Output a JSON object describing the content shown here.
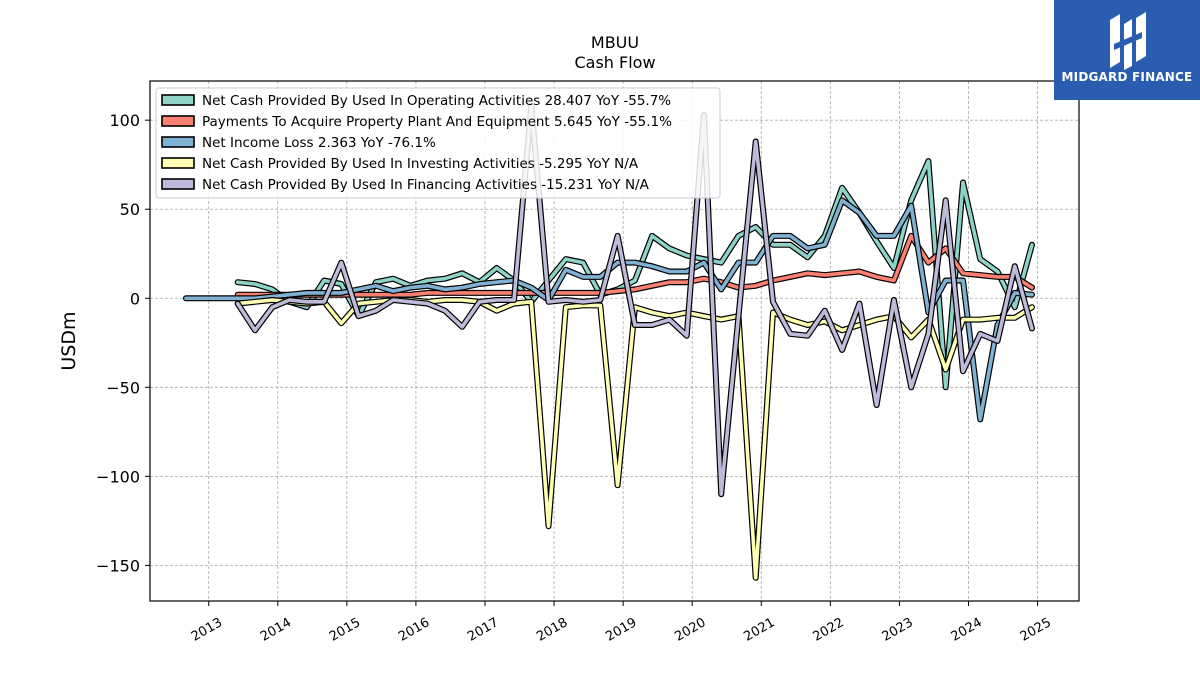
{
  "brand": {
    "name": "MIDGARD FINANCE",
    "logo_icon": "midgard-logo-icon",
    "color": "#2a5db0"
  },
  "chart_data": {
    "type": "line",
    "title": "MBUU",
    "subtitle": "Cash Flow",
    "ylabel": "USDm",
    "xlabel": "",
    "ylim": [
      -170,
      122
    ],
    "xlim": [
      2012.15,
      2025.6
    ],
    "yticks": [
      100,
      50,
      0,
      -50,
      -100,
      -150
    ],
    "xticks": [
      2013,
      2014,
      2015,
      2016,
      2017,
      2018,
      2019,
      2020,
      2021,
      2022,
      2023,
      2024,
      2025
    ],
    "grid": true,
    "legend_position": "top-left",
    "series": [
      {
        "name": "Net Cash Provided By Used In Operating Activities  28.407 YoY -55.7%",
        "color": "#8dd3c7",
        "x": [
          2013.42,
          2013.67,
          2013.92,
          2014.17,
          2014.42,
          2014.67,
          2014.92,
          2015.17,
          2015.42,
          2015.67,
          2015.92,
          2016.17,
          2016.42,
          2016.67,
          2016.92,
          2017.17,
          2017.42,
          2017.67,
          2017.92,
          2018.17,
          2018.42,
          2018.67,
          2018.92,
          2019.17,
          2019.42,
          2019.67,
          2019.92,
          2020.17,
          2020.42,
          2020.67,
          2020.92,
          2021.17,
          2021.42,
          2021.67,
          2021.92,
          2022.17,
          2022.42,
          2022.67,
          2022.92,
          2023.17,
          2023.42,
          2023.67,
          2023.92,
          2024.17,
          2024.42,
          2024.67,
          2024.92
        ],
        "values": [
          9,
          8,
          5,
          -2,
          -5,
          10,
          8,
          -10,
          9,
          11,
          7,
          10,
          11,
          14,
          9,
          17,
          10,
          -2,
          10,
          22,
          20,
          2,
          5,
          10,
          35,
          28,
          24,
          22,
          20,
          35,
          40,
          30,
          30,
          23,
          35,
          62,
          48,
          32,
          17,
          55,
          77,
          -50,
          65,
          22,
          15,
          -5,
          30
        ]
      },
      {
        "name": "Payments To Acquire Property Plant And Equipment  5.645 YoY -55.1%",
        "color": "#fb8072",
        "x": [
          2013.42,
          2013.67,
          2013.92,
          2014.17,
          2014.42,
          2014.67,
          2014.92,
          2015.17,
          2015.42,
          2015.67,
          2015.92,
          2016.17,
          2016.42,
          2016.67,
          2016.92,
          2017.17,
          2017.42,
          2017.67,
          2017.92,
          2018.17,
          2018.42,
          2018.67,
          2018.92,
          2019.17,
          2019.42,
          2019.67,
          2019.92,
          2020.17,
          2020.42,
          2020.67,
          2020.92,
          2021.17,
          2021.42,
          2021.67,
          2021.92,
          2022.17,
          2022.42,
          2022.67,
          2022.92,
          2023.17,
          2023.42,
          2023.67,
          2023.92,
          2024.17,
          2024.42,
          2024.67,
          2024.92
        ],
        "values": [
          2,
          2,
          2,
          2,
          2,
          2,
          2,
          2,
          2,
          2,
          2,
          3,
          3,
          3,
          3,
          3,
          3,
          3,
          3,
          3,
          3,
          3,
          4,
          5,
          7,
          9,
          9,
          11,
          9,
          6,
          7,
          10,
          12,
          14,
          13,
          14,
          15,
          12,
          10,
          35,
          20,
          28,
          14,
          13,
          12,
          12,
          6
        ]
      },
      {
        "name": "Net Income Loss  2.363 YoY -76.1%",
        "color": "#80b1d3",
        "x": [
          2012.67,
          2012.92,
          2013.17,
          2013.42,
          2013.67,
          2013.92,
          2014.17,
          2014.42,
          2014.67,
          2014.92,
          2015.17,
          2015.42,
          2015.67,
          2015.92,
          2016.17,
          2016.42,
          2016.67,
          2016.92,
          2017.17,
          2017.42,
          2017.67,
          2017.92,
          2018.17,
          2018.42,
          2018.67,
          2018.92,
          2019.17,
          2019.42,
          2019.67,
          2019.92,
          2020.17,
          2020.42,
          2020.67,
          2020.92,
          2021.17,
          2021.42,
          2021.67,
          2021.92,
          2022.17,
          2022.42,
          2022.67,
          2022.92,
          2023.17,
          2023.42,
          2023.67,
          2023.92,
          2024.17,
          2024.42,
          2024.67,
          2024.92
        ],
        "values": [
          0,
          0,
          0,
          0,
          0,
          1,
          2,
          3,
          3,
          3,
          5,
          7,
          4,
          6,
          7,
          5,
          6,
          8,
          9,
          10,
          6,
          -1,
          16,
          12,
          12,
          20,
          20,
          18,
          15,
          15,
          20,
          5,
          20,
          20,
          35,
          35,
          28,
          30,
          55,
          48,
          35,
          35,
          52,
          -8,
          10,
          10,
          -68,
          -15,
          3,
          2
        ]
      },
      {
        "name": "Net Cash Provided By Used In Investing Activities  -5.295 YoY N/A",
        "color": "#ffffb3",
        "x": [
          2013.42,
          2013.67,
          2013.92,
          2014.17,
          2014.42,
          2014.67,
          2014.92,
          2015.17,
          2015.42,
          2015.67,
          2015.92,
          2016.17,
          2016.42,
          2016.67,
          2016.92,
          2017.17,
          2017.42,
          2017.67,
          2017.92,
          2018.17,
          2018.42,
          2018.67,
          2018.92,
          2019.17,
          2019.42,
          2019.67,
          2019.92,
          2020.17,
          2020.42,
          2020.67,
          2020.92,
          2021.17,
          2021.42,
          2021.67,
          2021.92,
          2022.17,
          2022.42,
          2022.67,
          2022.92,
          2023.17,
          2023.42,
          2023.67,
          2023.92,
          2024.17,
          2024.42,
          2024.67,
          2024.92
        ],
        "values": [
          -3,
          -2,
          -1,
          -2,
          -3,
          -2,
          -14,
          -3,
          -2,
          -1,
          -1,
          -2,
          -1,
          -1,
          -2,
          -7,
          -3,
          -2,
          -128,
          -5,
          -4,
          -4,
          -105,
          -5,
          -8,
          -10,
          -8,
          -10,
          -12,
          -10,
          -157,
          -8,
          -12,
          -15,
          -13,
          -18,
          -15,
          -12,
          -10,
          -22,
          -12,
          -40,
          -12,
          -12,
          -11,
          -11,
          -5
        ]
      },
      {
        "name": "Net Cash Provided By Used In Financing Activities  -15.231 YoY N/A",
        "color": "#bebada",
        "x": [
          2013.42,
          2013.67,
          2013.92,
          2014.17,
          2014.42,
          2014.67,
          2014.92,
          2015.17,
          2015.42,
          2015.67,
          2015.92,
          2016.17,
          2016.42,
          2016.67,
          2016.92,
          2017.17,
          2017.42,
          2017.67,
          2017.92,
          2018.17,
          2018.42,
          2018.67,
          2018.92,
          2019.17,
          2019.42,
          2019.67,
          2019.92,
          2020.17,
          2020.42,
          2020.67,
          2020.92,
          2021.17,
          2021.42,
          2021.67,
          2021.92,
          2022.17,
          2022.42,
          2022.67,
          2022.92,
          2023.17,
          2023.42,
          2023.67,
          2023.92,
          2024.17,
          2024.42,
          2024.67,
          2024.92
        ],
        "values": [
          -3,
          -18,
          -5,
          -1,
          -2,
          -2,
          20,
          -10,
          -7,
          -1,
          -2,
          -3,
          -7,
          -16,
          -2,
          -1,
          -1,
          108,
          -2,
          -1,
          -2,
          -1,
          35,
          -15,
          -15,
          -12,
          -21,
          103,
          -110,
          -10,
          88,
          -2,
          -20,
          -21,
          -7,
          -29,
          -3,
          -60,
          -1,
          -50,
          -20,
          55,
          -41,
          -20,
          -24,
          18,
          -17
        ]
      }
    ]
  }
}
